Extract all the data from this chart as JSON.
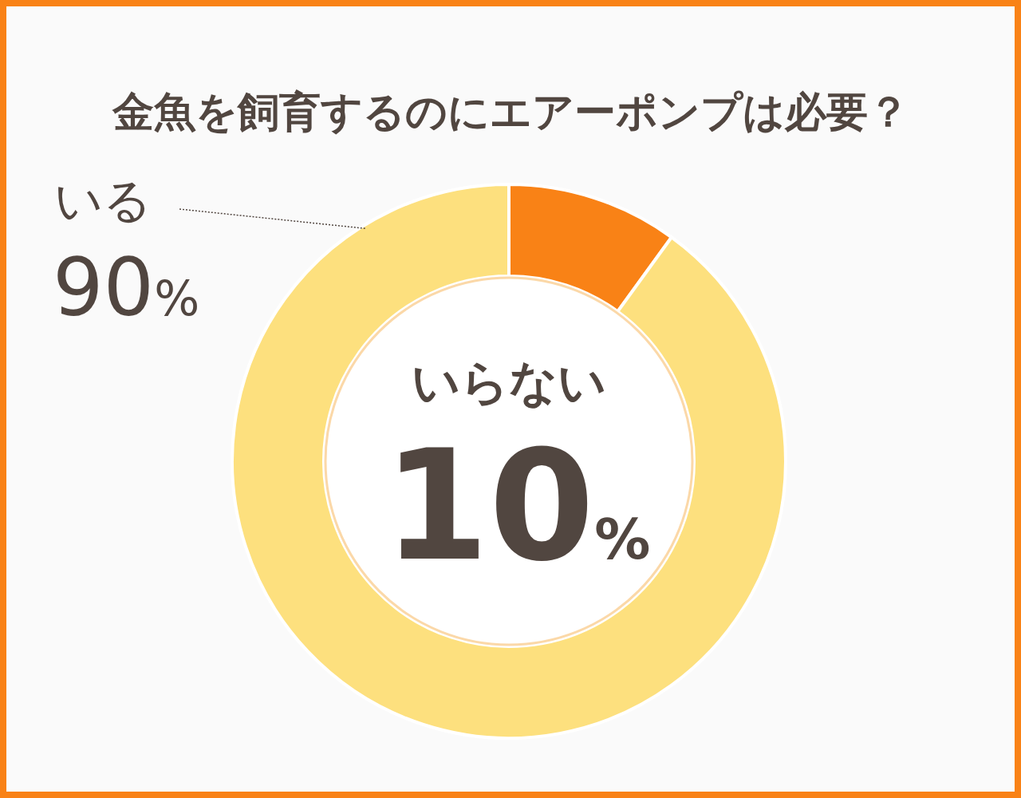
{
  "chart_data": {
    "type": "donut",
    "title": "金魚を飼育するのにエアーポンプは必要？",
    "categories": [
      "いらない",
      "いる"
    ],
    "values": [
      10,
      90
    ],
    "colors": [
      "#f98216",
      "#fde07e"
    ],
    "value_labels": [
      "10%",
      "90%"
    ]
  }
}
